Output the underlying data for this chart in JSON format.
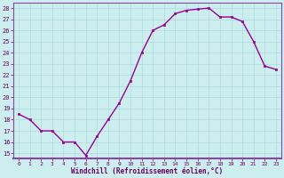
{
  "x": [
    0,
    1,
    2,
    3,
    4,
    5,
    6,
    7,
    8,
    9,
    10,
    11,
    12,
    13,
    14,
    15,
    16,
    17,
    18,
    19,
    20,
    21,
    22,
    23
  ],
  "y": [
    18.5,
    18.0,
    17.0,
    17.0,
    16.0,
    16.0,
    14.8,
    16.5,
    18.0,
    19.5,
    21.5,
    24.0,
    26.0,
    26.5,
    27.5,
    27.8,
    27.9,
    28.0,
    27.2,
    27.2,
    26.8,
    25.0,
    22.8,
    22.5
  ],
  "line_color": "#990099",
  "marker": "s",
  "marker_size": 1.8,
  "bg_color": "#cceeee",
  "grid_color": "#aadddd",
  "spine_color": "#8844aa",
  "xlabel": "Windchill (Refroidissement éolien,°C)",
  "xlabel_color": "#660066",
  "tick_color": "#660066",
  "xlim": [
    -0.5,
    23.5
  ],
  "ylim": [
    14.5,
    28.5
  ],
  "yticks": [
    15,
    16,
    17,
    18,
    19,
    20,
    21,
    22,
    23,
    24,
    25,
    26,
    27,
    28
  ],
  "xticks": [
    0,
    1,
    2,
    3,
    4,
    5,
    6,
    7,
    8,
    9,
    10,
    11,
    12,
    13,
    14,
    15,
    16,
    17,
    18,
    19,
    20,
    21,
    22,
    23
  ],
  "line_width": 1.0,
  "figsize": [
    3.2,
    2.0
  ],
  "dpi": 100
}
